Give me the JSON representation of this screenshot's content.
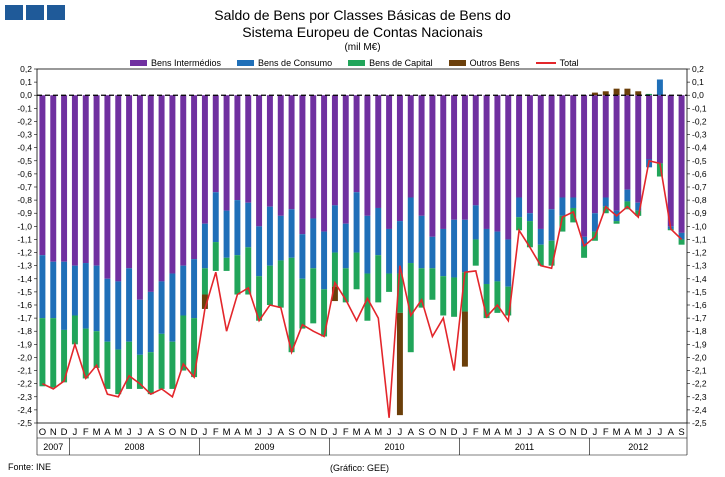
{
  "chart_data": {
    "type": "bar",
    "title": "Saldo de Bens por Classes Básicas de Bens do",
    "title_line2": "Sistema Europeu de Contas Nacionais",
    "subtitle": "(mil M€)",
    "source_left": "Fonte: INE",
    "source_center": "(Gráfico: GEE)",
    "ylim": [
      -2.5,
      0.2
    ],
    "yticks": [
      "0,2",
      "0,1",
      "0,0",
      "-0,1",
      "-0,2",
      "-0,3",
      "-0,4",
      "-0,5",
      "-0,6",
      "-0,7",
      "-0,8",
      "-0,9",
      "-1,0",
      "-1,1",
      "-1,2",
      "-1,3",
      "-1,4",
      "-1,5",
      "-1,6",
      "-1,7",
      "-1,8",
      "-1,9",
      "-2,0",
      "-2,1",
      "-2,2",
      "-2,3",
      "-2,4",
      "-2,5"
    ],
    "x_months": [
      "O",
      "N",
      "D",
      "J",
      "F",
      "M",
      "A",
      "M",
      "J",
      "J",
      "A",
      "S",
      "O",
      "N",
      "D",
      "J",
      "F",
      "M",
      "A",
      "M",
      "J",
      "J",
      "A",
      "S",
      "O",
      "N",
      "D",
      "J",
      "F",
      "M",
      "A",
      "M",
      "J",
      "J",
      "A",
      "S",
      "O",
      "N",
      "D",
      "J",
      "F",
      "M",
      "A",
      "M",
      "J",
      "J",
      "A",
      "S",
      "O",
      "N",
      "D",
      "J",
      "F",
      "M",
      "A",
      "M",
      "J",
      "J",
      "A",
      "S"
    ],
    "years": [
      {
        "label": "2007",
        "start": 0,
        "count": 3
      },
      {
        "label": "2008",
        "start": 3,
        "count": 12
      },
      {
        "label": "2009",
        "start": 15,
        "count": 12
      },
      {
        "label": "2010",
        "start": 27,
        "count": 12
      },
      {
        "label": "2011",
        "start": 39,
        "count": 12
      },
      {
        "label": "2012",
        "start": 51,
        "count": 9
      }
    ],
    "series": [
      {
        "name": "Bens Intermédios",
        "color": "#7030a0",
        "values": [
          -1.22,
          -1.27,
          -1.27,
          -1.3,
          -1.28,
          -1.3,
          -1.4,
          -1.42,
          -1.32,
          -1.56,
          -1.5,
          -1.42,
          -1.36,
          -1.3,
          -1.25,
          -0.98,
          -0.74,
          -0.88,
          -0.8,
          -0.82,
          -1.0,
          -0.85,
          -0.92,
          -0.87,
          -1.06,
          -0.94,
          -1.04,
          -0.84,
          -0.98,
          -0.74,
          -0.92,
          -0.86,
          -1.02,
          -0.96,
          -0.78,
          -0.92,
          -1.08,
          -1.02,
          -0.95,
          -0.95,
          -0.84,
          -1.02,
          -1.04,
          -1.1,
          -0.78,
          -0.9,
          -1.02,
          -0.87,
          -0.78,
          -0.78,
          -1.08,
          -0.9,
          -0.78,
          -0.88,
          -0.72,
          -0.82,
          -0.49,
          -0.52,
          -1.0,
          -1.05
        ]
      },
      {
        "name": "Bens de Consumo",
        "color": "#1f6fb8",
        "values": [
          -0.48,
          -0.43,
          -0.52,
          -0.38,
          -0.5,
          -0.5,
          -0.48,
          -0.52,
          -0.56,
          -0.42,
          -0.46,
          -0.4,
          -0.52,
          -0.38,
          -0.45,
          -0.34,
          -0.38,
          -0.36,
          -0.42,
          -0.34,
          -0.38,
          -0.45,
          -0.34,
          -0.37,
          -0.34,
          -0.38,
          -0.44,
          -0.36,
          -0.34,
          -0.46,
          -0.44,
          -0.36,
          -0.34,
          -0.4,
          -0.5,
          -0.4,
          -0.24,
          -0.36,
          -0.44,
          -0.4,
          -0.26,
          -0.42,
          -0.38,
          -0.36,
          -0.15,
          -0.06,
          -0.12,
          -0.24,
          -0.14,
          -0.08,
          -0.07,
          -0.14,
          -0.07,
          -0.08,
          -0.09,
          -0.06,
          -0.06,
          0.12,
          -0.02,
          -0.05
        ]
      },
      {
        "name": "Bens de Capital",
        "color": "#21a55a",
        "values": [
          -0.52,
          -0.53,
          -0.4,
          -0.22,
          -0.38,
          -0.28,
          -0.36,
          -0.34,
          -0.36,
          -0.26,
          -0.32,
          -0.42,
          -0.36,
          -0.42,
          -0.45,
          -0.2,
          -0.22,
          -0.1,
          -0.3,
          -0.36,
          -0.34,
          -0.3,
          -0.36,
          -0.72,
          -0.38,
          -0.42,
          -0.36,
          -0.26,
          -0.26,
          -0.28,
          -0.36,
          -0.36,
          -0.14,
          -0.3,
          -0.68,
          -0.3,
          -0.24,
          -0.3,
          -0.3,
          -0.3,
          -0.2,
          -0.26,
          -0.24,
          -0.22,
          -0.1,
          -0.2,
          -0.16,
          -0.19,
          -0.12,
          -0.11,
          -0.09,
          -0.07,
          -0.05,
          -0.02,
          -0.06,
          -0.04,
          0.01,
          -0.1,
          -0.01,
          -0.04
        ]
      },
      {
        "name": "Outros Bens",
        "color": "#6b3f0a",
        "values": [
          0.0,
          0.0,
          0.0,
          0.0,
          0.0,
          0.0,
          0.0,
          0.0,
          0.0,
          0.0,
          0.0,
          0.0,
          0.0,
          0.0,
          0.0,
          -0.11,
          0.0,
          0.0,
          0.0,
          0.0,
          0.0,
          0.0,
          0.0,
          0.0,
          0.0,
          0.0,
          0.0,
          -0.11,
          0.0,
          0.0,
          0.0,
          0.0,
          0.0,
          -0.78,
          0.0,
          0.0,
          0.0,
          0.0,
          0.0,
          -0.42,
          0.0,
          0.0,
          0.0,
          0.0,
          0.0,
          0.0,
          0.0,
          0.0,
          0.0,
          0.0,
          0.0,
          0.02,
          0.03,
          0.05,
          0.05,
          0.03,
          0.0,
          0.0,
          0.0,
          0.0
        ]
      },
      {
        "name": "Total",
        "color": "#e3262b",
        "type": "line",
        "values": [
          -2.2,
          -2.24,
          -2.18,
          -1.9,
          -2.16,
          -2.06,
          -2.28,
          -2.3,
          -2.14,
          -2.2,
          -2.28,
          -2.24,
          -2.3,
          -2.05,
          -2.15,
          -1.63,
          -1.35,
          -1.8,
          -1.52,
          -1.47,
          -1.72,
          -1.6,
          -1.62,
          -1.96,
          -1.75,
          -1.8,
          -1.84,
          -1.43,
          -1.56,
          -1.72,
          -1.55,
          -1.7,
          -2.46,
          -1.3,
          -1.68,
          -1.56,
          -1.84,
          -1.7,
          -2.1,
          -1.35,
          -1.34,
          -1.69,
          -1.6,
          -1.72,
          -1.03,
          -1.16,
          -1.3,
          -1.32,
          -0.93,
          -0.89,
          -1.15,
          -1.08,
          -0.85,
          -0.92,
          -0.85,
          -0.93,
          -0.5,
          -0.52,
          -1.02,
          -1.1
        ]
      }
    ]
  }
}
